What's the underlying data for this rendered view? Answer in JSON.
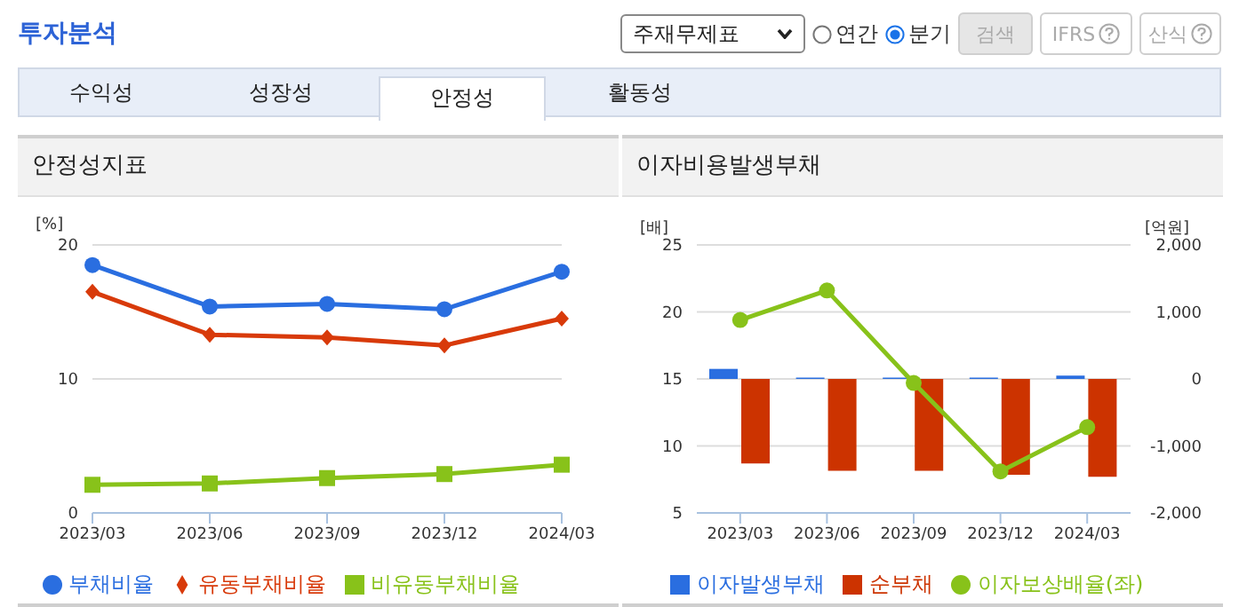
{
  "chart_data": [
    {
      "type": "other",
      "title": "투자분석",
      "annotations": [
        "주재무제표",
        "연간",
        "분기",
        "검색",
        "IFRS",
        "산식",
        "수익성",
        "성장성",
        "안정성",
        "활동성"
      ]
    },
    {
      "type": "line",
      "title": "안정성지표",
      "ylabel": "[%]",
      "categories": [
        "2023/03",
        "2023/06",
        "2023/09",
        "2023/12",
        "2024/03"
      ],
      "ylim": [
        0,
        20
      ],
      "yticks": [
        0,
        10,
        20
      ],
      "grid": "y",
      "legend": "bottom",
      "series": [
        {
          "name": "부채비율",
          "color": "#2a6ee0",
          "marker": "circle",
          "values": [
            18.5,
            15.4,
            15.6,
            15.2,
            18.0
          ]
        },
        {
          "name": "유동부채비율",
          "color": "#d83a0a",
          "marker": "diamond",
          "values": [
            16.5,
            13.3,
            13.1,
            12.5,
            14.5
          ]
        },
        {
          "name": "비유동부채비율",
          "color": "#88c21a",
          "marker": "square",
          "values": [
            2.1,
            2.2,
            2.6,
            2.9,
            3.6
          ]
        }
      ]
    },
    {
      "type": "bar",
      "title": "이자비용발생부채",
      "ylabel": "[배]",
      "y2label": "[억원]",
      "categories": [
        "2023/03",
        "2023/06",
        "2023/09",
        "2023/12",
        "2024/03"
      ],
      "ylim": [
        5,
        25
      ],
      "yticks": [
        5,
        10,
        15,
        20,
        25
      ],
      "y2lim": [
        -2000,
        2000
      ],
      "y2ticks": [
        {
          "value": -2000,
          "label": "-2,000"
        },
        {
          "value": -1000,
          "label": "-1,000"
        },
        {
          "value": 0,
          "label": "0"
        },
        {
          "value": 1000,
          "label": "1,000"
        },
        {
          "value": 2000,
          "label": "2,000"
        }
      ],
      "grid": "y",
      "legend": "bottom",
      "series": [
        {
          "name": "이자발생부채",
          "color": "#2a6ee0",
          "axis": "y2",
          "values": [
            150,
            20,
            20,
            20,
            50
          ]
        },
        {
          "name": "순부채",
          "color": "#cc3300",
          "axis": "y2",
          "values": [
            -1260,
            -1370,
            -1370,
            -1430,
            -1460
          ]
        },
        {
          "name": "이자보상배율(좌)",
          "type": "line",
          "color": "#88c21a",
          "marker": "circle",
          "values": [
            19.4,
            21.6,
            14.7,
            8.1,
            11.4
          ]
        }
      ]
    }
  ]
}
